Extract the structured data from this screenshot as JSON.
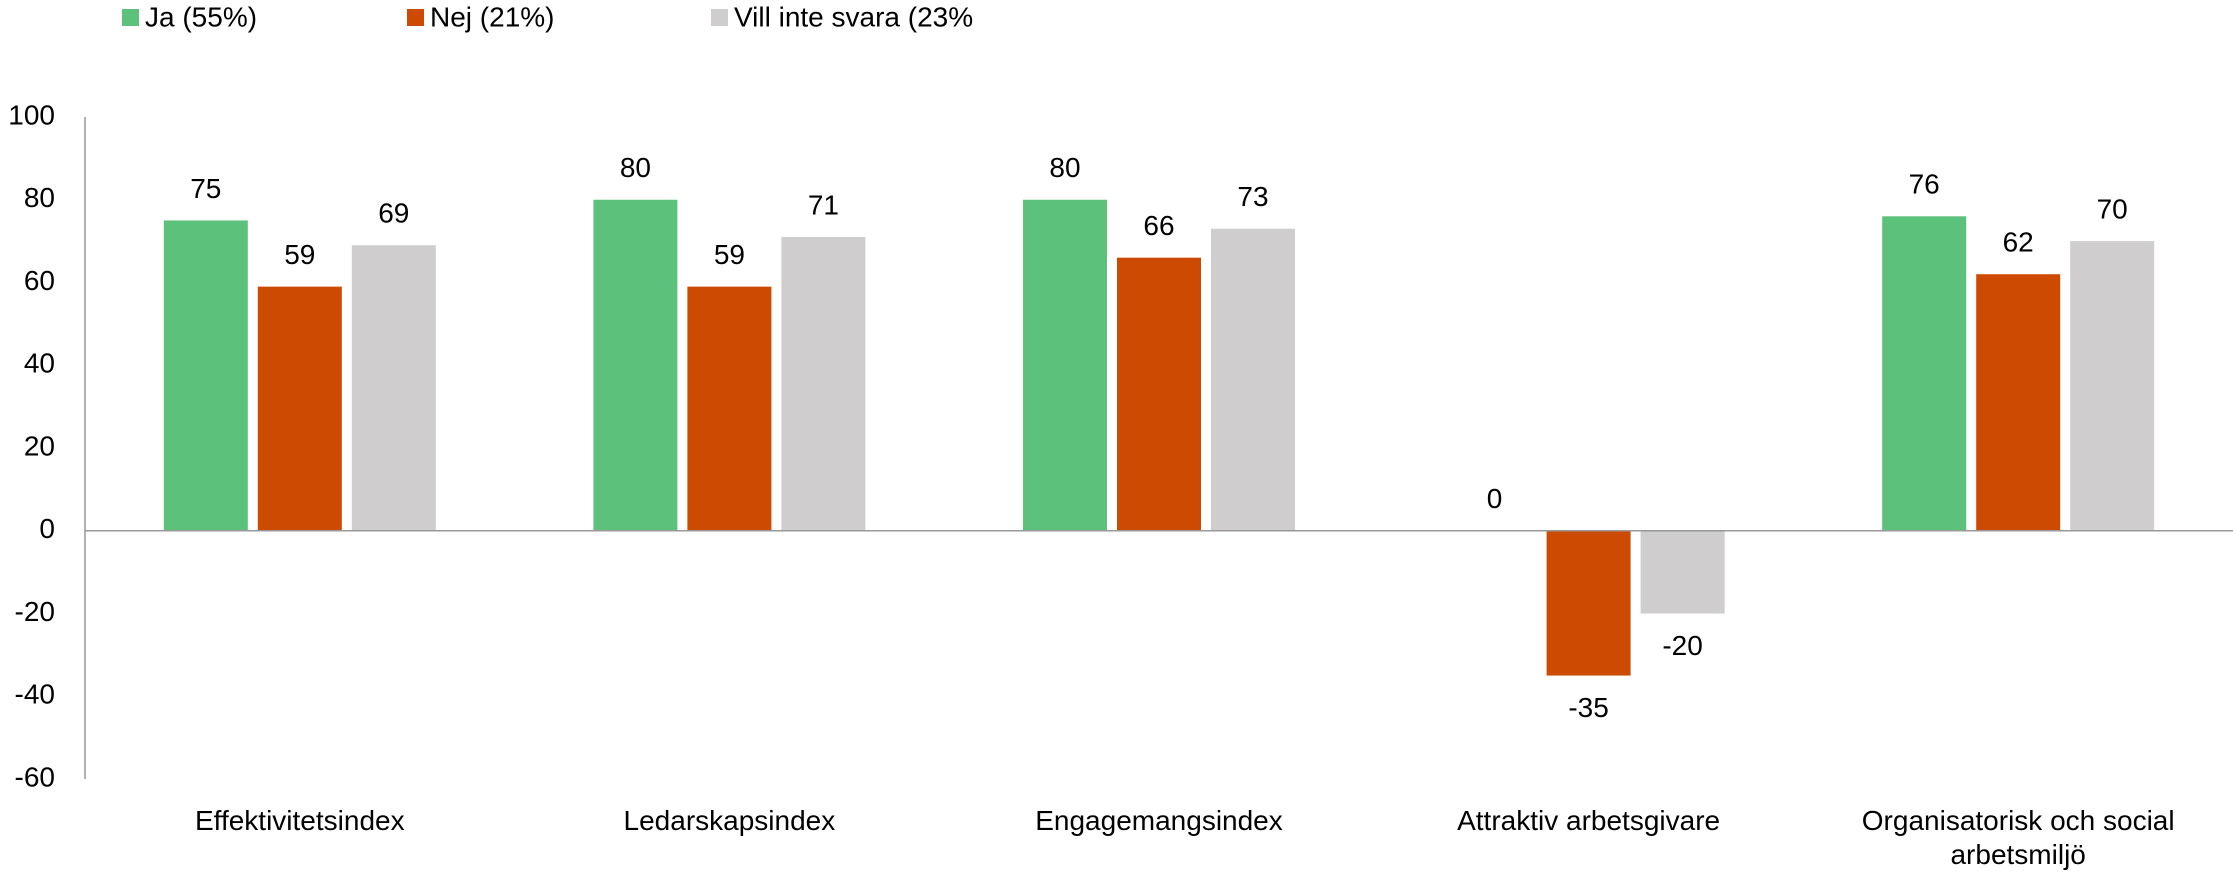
{
  "chart_data": {
    "type": "bar",
    "categories": [
      "Effektivitetsindex",
      "Ledarskapsindex",
      "Engagemangsindex",
      "Attraktiv arbetsgivare",
      "Organisatorisk och social arbetsmiljö"
    ],
    "series": [
      {
        "name": "Ja (55%)",
        "color": "#5bc17b",
        "values": [
          75,
          80,
          80,
          0,
          76
        ]
      },
      {
        "name": "Nej (21%)",
        "color": "#cc4a02",
        "values": [
          59,
          59,
          66,
          -35,
          62
        ]
      },
      {
        "name": "Vill inte svara (23%",
        "color": "#cfcdce",
        "values": [
          69,
          71,
          73,
          -20,
          70
        ]
      }
    ],
    "ylim": [
      -60,
      100
    ],
    "yticks": [
      -60,
      -40,
      -20,
      0,
      20,
      40,
      60,
      80,
      100
    ],
    "grid": false,
    "legend": "top"
  }
}
